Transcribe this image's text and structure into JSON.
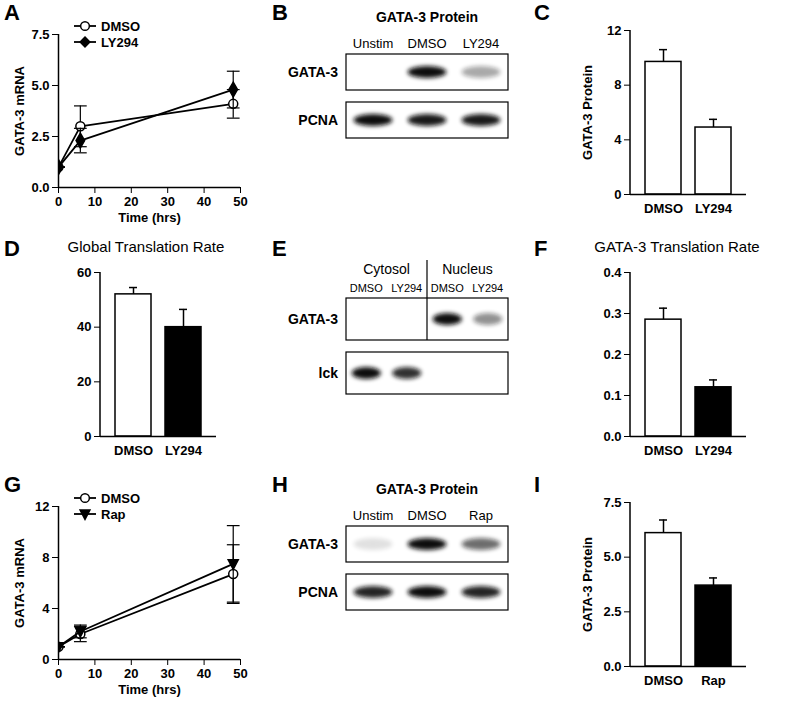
{
  "chart_data": [
    {
      "panel": "A",
      "type": "line",
      "x": [
        0,
        6,
        48
      ],
      "xlim": [
        0,
        50
      ],
      "xticks": [
        0,
        10,
        20,
        30,
        40,
        50
      ],
      "ylim": [
        0,
        7.5
      ],
      "yticks": [
        {
          "value": 0,
          "label": "0.0"
        },
        2.5,
        {
          "value": 5,
          "label": "5.0"
        },
        7.5
      ],
      "x_label": "Time (hrs)",
      "y_label": "GATA-3 mRNA",
      "legend": "top-left",
      "series": [
        {
          "name": "DMSO",
          "color": "#000000",
          "marker": "open_circle",
          "values": [
            1,
            3.0,
            4.1
          ],
          "errors": [
            0,
            1.0,
            0.7
          ]
        },
        {
          "name": "LY294",
          "color": "#000000",
          "marker": "diamond",
          "values": [
            1,
            2.3,
            4.8
          ],
          "errors": [
            0,
            0.6,
            0.9
          ]
        }
      ]
    },
    {
      "panel": "B",
      "type": "blot",
      "title": "GATA-3 Protein",
      "lanes": [
        "Unstim",
        "DMSO",
        "LY294"
      ],
      "rows": [
        {
          "label": "GATA-3",
          "bands": [
            0,
            1,
            0.35
          ]
        },
        {
          "label": "PCNA",
          "bands": [
            1,
            0.95,
            0.95
          ]
        }
      ]
    },
    {
      "panel": "C",
      "type": "bar",
      "categories": [
        "DMSO",
        "LY294"
      ],
      "values": [
        9.7,
        4.9
      ],
      "errors": [
        0.9,
        0.6
      ],
      "colors": [
        "#ffffff",
        "#ffffff"
      ],
      "ylim": [
        0,
        12
      ],
      "yticks": [
        0,
        4,
        8,
        12
      ],
      "y_label": "GATA-3 Protein"
    },
    {
      "panel": "D",
      "type": "bar",
      "title": "Global Translation Rate",
      "categories": [
        "DMSO",
        "LY294"
      ],
      "values": [
        52,
        40
      ],
      "errors": [
        2.5,
        6.5
      ],
      "colors": [
        "#ffffff",
        "#000000"
      ],
      "ylim": [
        0,
        60
      ],
      "yticks": [
        0,
        20,
        40,
        60
      ]
    },
    {
      "panel": "E",
      "type": "blot",
      "groups": [
        {
          "label": "Cytosol",
          "lanes": [
            "DMSO",
            "LY294"
          ]
        },
        {
          "label": "Nucleus",
          "lanes": [
            "DMSO",
            "LY294"
          ]
        }
      ],
      "rows": [
        {
          "label": "GATA-3",
          "bands": [
            0,
            0,
            1,
            0.45
          ]
        },
        {
          "label": "lck",
          "bands": [
            1,
            0.85,
            0,
            0
          ]
        }
      ]
    },
    {
      "panel": "F",
      "type": "bar",
      "title": "GATA-3 Translation Rate",
      "categories": [
        "DMSO",
        "LY294"
      ],
      "values": [
        0.285,
        0.12
      ],
      "errors": [
        0.028,
        0.018
      ],
      "colors": [
        "#ffffff",
        "#000000"
      ],
      "ylim": [
        0,
        0.4
      ],
      "yticks": [
        {
          "value": 0,
          "label": "0.0"
        },
        0.1,
        0.2,
        0.3,
        0.4
      ]
    },
    {
      "panel": "G",
      "type": "line",
      "x": [
        0,
        6,
        48
      ],
      "xlim": [
        0,
        50
      ],
      "xticks": [
        0,
        10,
        20,
        30,
        40,
        50
      ],
      "ylim": [
        0,
        12
      ],
      "yticks": [
        0,
        4,
        8,
        12
      ],
      "x_label": "Time (hrs)",
      "y_label": "GATA-3 mRNA",
      "legend": "top-left",
      "series": [
        {
          "name": "DMSO",
          "color": "#000000",
          "marker": "open_circle",
          "values": [
            1,
            2.0,
            6.7
          ],
          "errors": [
            0,
            0.6,
            2.3
          ]
        },
        {
          "name": "Rap",
          "color": "#000000",
          "marker": "triangle_down",
          "values": [
            1,
            2.2,
            7.5
          ],
          "errors": [
            0,
            0.5,
            3.0
          ]
        }
      ]
    },
    {
      "panel": "H",
      "type": "blot",
      "title": "GATA-3 Protein",
      "lanes": [
        "Unstim",
        "DMSO",
        "Rap"
      ],
      "rows": [
        {
          "label": "GATA-3",
          "bands": [
            0.12,
            1,
            0.6
          ]
        },
        {
          "label": "PCNA",
          "bands": [
            0.9,
            1,
            0.9
          ]
        }
      ]
    },
    {
      "panel": "I",
      "type": "bar",
      "categories": [
        "DMSO",
        "Rap"
      ],
      "values": [
        6.1,
        3.7
      ],
      "errors": [
        0.6,
        0.35
      ],
      "colors": [
        "#ffffff",
        "#000000"
      ],
      "ylim": [
        0,
        7.5
      ],
      "yticks": [
        {
          "value": 0,
          "label": "0.0"
        },
        2.5,
        {
          "value": 5,
          "label": "5.0"
        },
        7.5
      ],
      "y_label": "GATA-3 Protein"
    }
  ]
}
